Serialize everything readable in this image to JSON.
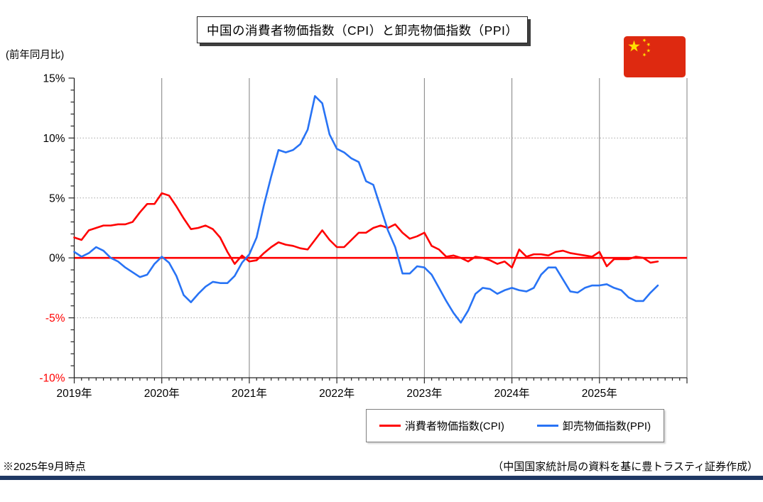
{
  "header": {
    "title": "中国の消費者物価指数（CPI）と卸売物価指数（PPI）",
    "axis_note": "(前年同月比)"
  },
  "flag": {
    "name": "china-flag",
    "field_color": "#DE2910",
    "star_color": "#FFDE00"
  },
  "footer": {
    "note_left": "※2025年9月時点",
    "note_right": "（中国国家統計局の資料を基に豊トラスティ証券作成）",
    "rule_color": "#1F3864"
  },
  "chart_data": {
    "type": "line",
    "title": "中国の消費者物価指数（CPI）と卸売物価指数（PPI）",
    "xlabel": "",
    "ylabel": "(前年同月比)",
    "y_axis": {
      "unit": "%",
      "min": -10,
      "max": 15,
      "major_ticks": [
        15,
        10,
        5,
        0,
        -5,
        -10
      ],
      "minor_step": 1,
      "negative_label_color": "#FF0000",
      "positive_label_color": "#000000",
      "zero_line_color": "#FF0000",
      "dotted_gridlines_at": [
        10,
        5,
        -5
      ]
    },
    "x_axis": {
      "year_labels": [
        "2019年",
        "2020年",
        "2021年",
        "2022年",
        "2023年",
        "2024年",
        "2025年"
      ],
      "start_month": "2019-01",
      "end_month": "2025-09",
      "months_per_year": 12,
      "months_spanned": 84,
      "vertical_gridlines_at_year_starts": [
        2020,
        2021,
        2022,
        2023,
        2024,
        2025,
        2026
      ]
    },
    "legend_position": "bottom",
    "series": [
      {
        "name": "消費者物価指数(CPI)",
        "color": "#FF0000",
        "values": [
          1.7,
          1.5,
          2.3,
          2.5,
          2.7,
          2.7,
          2.8,
          2.8,
          3.0,
          3.8,
          4.5,
          4.5,
          5.4,
          5.2,
          4.3,
          3.3,
          2.4,
          2.5,
          2.7,
          2.4,
          1.7,
          0.5,
          -0.5,
          0.2,
          -0.3,
          -0.2,
          0.4,
          0.9,
          1.3,
          1.1,
          1.0,
          0.8,
          0.7,
          1.5,
          2.3,
          1.5,
          0.9,
          0.9,
          1.5,
          2.1,
          2.1,
          2.5,
          2.7,
          2.5,
          2.8,
          2.1,
          1.6,
          1.8,
          2.1,
          1.0,
          0.7,
          0.1,
          0.2,
          0.0,
          -0.3,
          0.1,
          0.0,
          -0.2,
          -0.5,
          -0.3,
          -0.8,
          0.7,
          0.1,
          0.3,
          0.3,
          0.2,
          0.5,
          0.6,
          0.4,
          0.3,
          0.2,
          0.1,
          0.5,
          -0.7,
          -0.1,
          -0.1,
          -0.1,
          0.1,
          0.0,
          -0.4,
          -0.3
        ]
      },
      {
        "name": "卸売物価指数(PPI)",
        "color": "#2873F5",
        "values": [
          0.5,
          0.1,
          0.4,
          0.9,
          0.6,
          0.0,
          -0.3,
          -0.8,
          -1.2,
          -1.6,
          -1.4,
          -0.5,
          0.1,
          -0.4,
          -1.5,
          -3.1,
          -3.7,
          -3.0,
          -2.4,
          -2.0,
          -2.1,
          -2.1,
          -1.5,
          -0.4,
          0.3,
          1.7,
          4.4,
          6.8,
          9.0,
          8.8,
          9.0,
          9.5,
          10.7,
          13.5,
          12.9,
          10.3,
          9.1,
          8.8,
          8.3,
          8.0,
          6.4,
          6.1,
          4.2,
          2.3,
          0.9,
          -1.3,
          -1.3,
          -0.7,
          -0.8,
          -1.4,
          -2.5,
          -3.6,
          -4.6,
          -5.4,
          -4.4,
          -3.0,
          -2.5,
          -2.6,
          -3.0,
          -2.7,
          -2.5,
          -2.7,
          -2.8,
          -2.5,
          -1.4,
          -0.8,
          -0.8,
          -1.8,
          -2.8,
          -2.9,
          -2.5,
          -2.3,
          -2.3,
          -2.2,
          -2.5,
          -2.7,
          -3.3,
          -3.6,
          -3.6,
          -2.9,
          -2.3
        ]
      }
    ]
  }
}
